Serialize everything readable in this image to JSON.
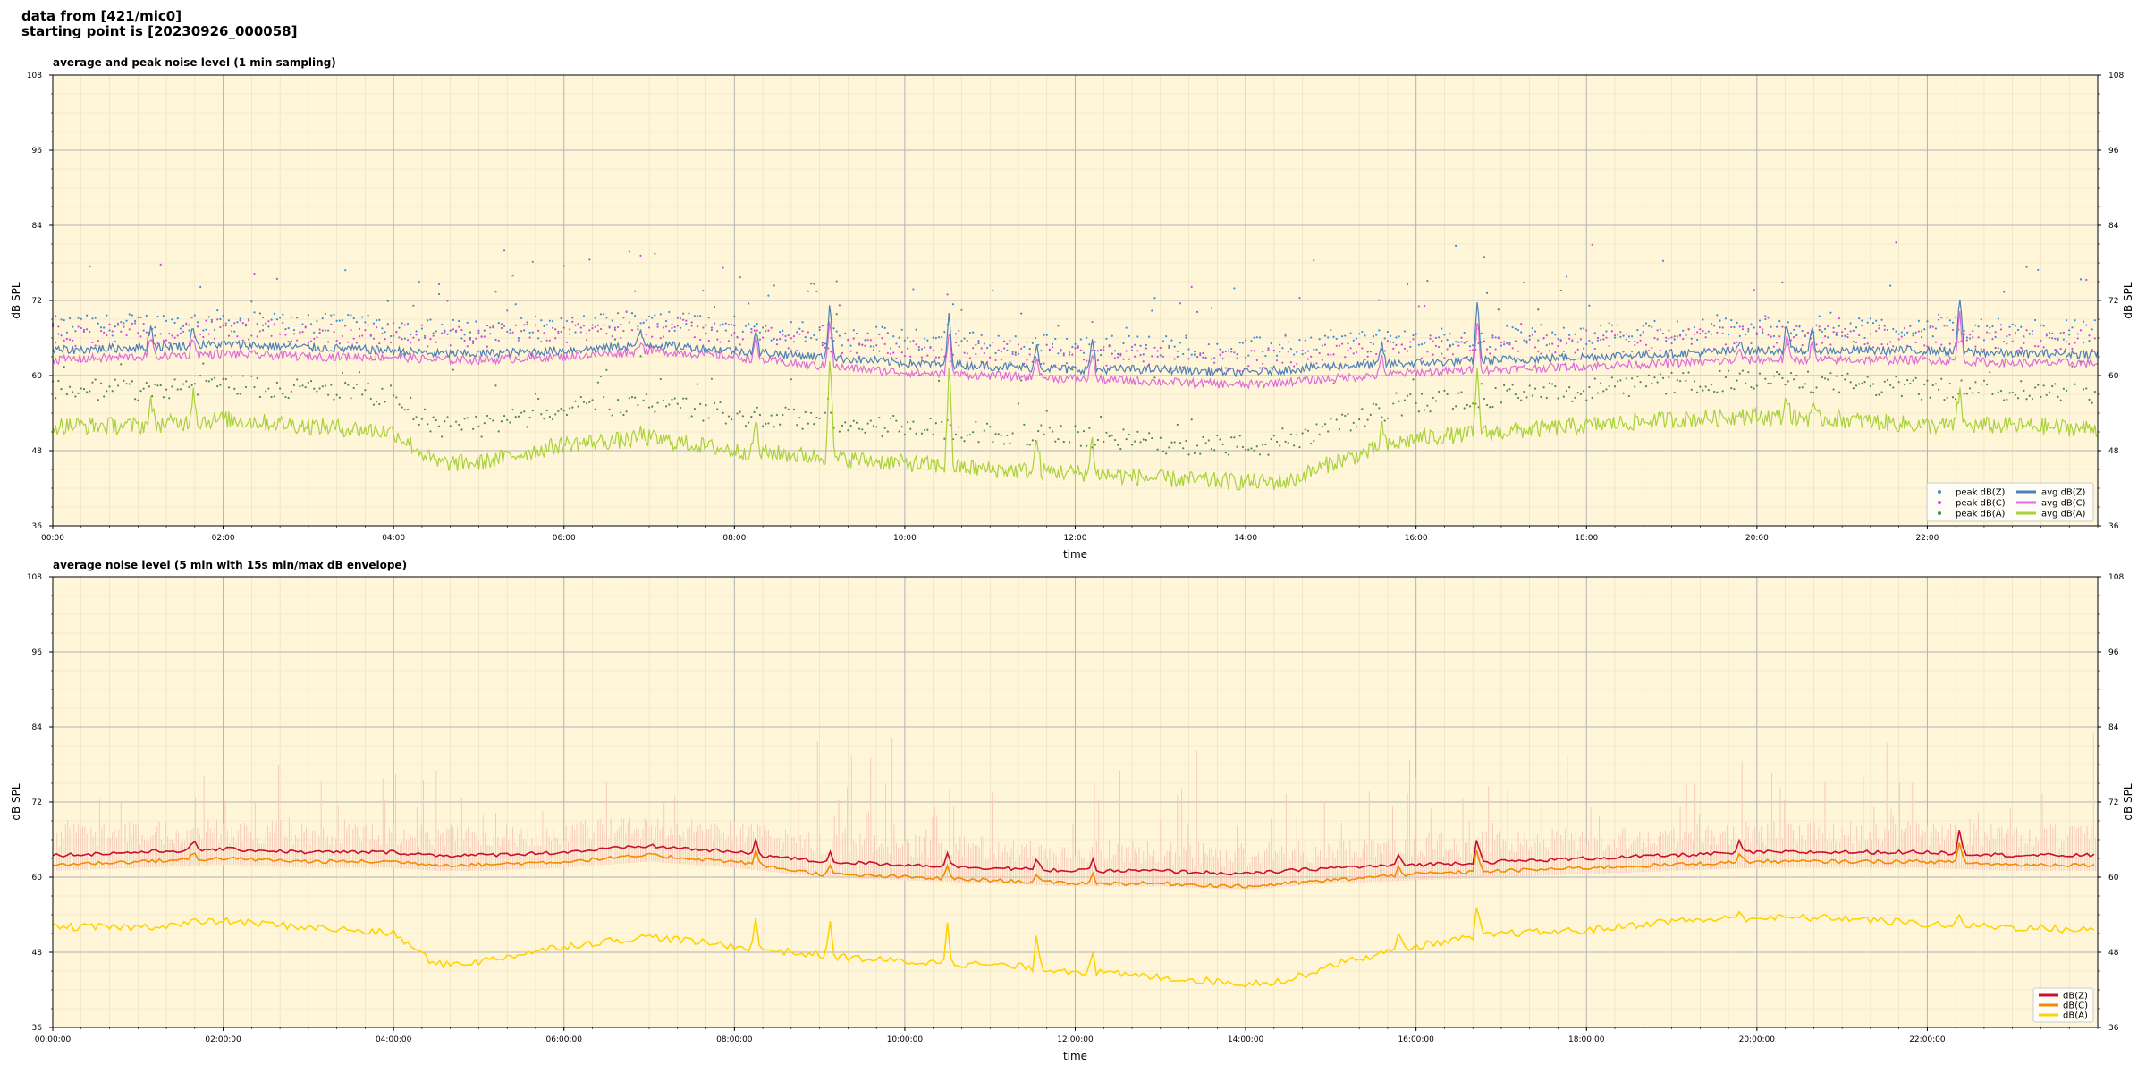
{
  "header": {
    "line1": "data from [421/mic0]",
    "line2": "starting point is [20230926_000058]"
  },
  "colors": {
    "bg": "#fff6da",
    "peakZ": "#3a8fd6",
    "peakC": "#d24ad2",
    "peakA": "#4e8a4e",
    "avgZ": "#4f7fb5",
    "avgC": "#e06ad8",
    "avgA": "#a9d13a",
    "dbZ": "#c8102e",
    "dbC": "#f28c00",
    "dbA": "#ffd200",
    "envelope": "#f7c9b8"
  },
  "chart_data": [
    {
      "type": "line",
      "title": "average and peak noise level (1 min sampling)",
      "xlabel": "time",
      "ylabel": "dB SPL",
      "ylim": [
        36,
        108
      ],
      "yticks": [
        "36",
        "48",
        "60",
        "72",
        "84",
        "96",
        "108"
      ],
      "xlim_hours": [
        0,
        24
      ],
      "xticks": [
        "00:00",
        "02:00",
        "04:00",
        "06:00",
        "08:00",
        "10:00",
        "12:00",
        "14:00",
        "16:00",
        "18:00",
        "20:00",
        "22:00"
      ],
      "grid": true,
      "legend_position": "bottom-right",
      "series": [
        {
          "name": "peak dB(Z)",
          "style": "points"
        },
        {
          "name": "peak dB(C)",
          "style": "points"
        },
        {
          "name": "peak dB(A)",
          "style": "points"
        },
        {
          "name": "avg dB(Z)",
          "style": "line"
        },
        {
          "name": "avg dB(C)",
          "style": "line"
        },
        {
          "name": "avg dB(A)",
          "style": "line"
        }
      ],
      "baseline_hours": [
        0,
        1,
        2,
        3,
        4,
        4.5,
        5,
        6,
        7,
        8,
        9,
        10,
        11,
        12,
        13,
        14,
        14.5,
        15,
        16,
        17,
        18,
        19,
        20,
        21,
        22,
        23,
        24
      ],
      "baseline_avg_Z": [
        64,
        64.5,
        65,
        64.5,
        64,
        63.5,
        63.5,
        64,
        65,
        64,
        63,
        62,
        61.5,
        61,
        61,
        60.5,
        61,
        61.5,
        62,
        62.5,
        63,
        63.5,
        64,
        64,
        64,
        63.5,
        63.5
      ],
      "baseline_avg_C": [
        62.5,
        63,
        63.5,
        63,
        63,
        62.5,
        62.5,
        63,
        64,
        63,
        61.5,
        60.5,
        60,
        59.5,
        59,
        58.5,
        59,
        59.5,
        60.5,
        61,
        61.5,
        62,
        62.5,
        62.5,
        62.5,
        62,
        62
      ],
      "baseline_avg_A": [
        52,
        52,
        53,
        52,
        51,
        46,
        46,
        49,
        50,
        48,
        47,
        46,
        45,
        44.5,
        43.5,
        43,
        43,
        46,
        50,
        51,
        52,
        53,
        53.5,
        53,
        52,
        52,
        51.5
      ],
      "spike_hours": [
        1.15,
        1.65,
        6.9,
        8.25,
        9.12,
        10.52,
        11.55,
        12.2,
        15.6,
        16.72,
        19.8,
        20.35,
        20.65,
        22.38
      ],
      "spike_avg_Z": [
        68,
        68,
        67,
        67,
        72,
        70,
        65,
        66,
        65,
        72,
        66,
        68,
        67,
        73
      ],
      "spike_avg_A": [
        56,
        58,
        51,
        53,
        64,
        62,
        50,
        50,
        52,
        61,
        55,
        57,
        55,
        58
      ]
    },
    {
      "type": "line",
      "title": "average noise level (5 min with 15s min/max dB envelope)",
      "xlabel": "time",
      "ylabel": "dB SPL",
      "ylim": [
        36,
        108
      ],
      "yticks": [
        "36",
        "48",
        "60",
        "72",
        "84",
        "96",
        "108"
      ],
      "xlim_hours": [
        0,
        24
      ],
      "xticks": [
        "00:00:00",
        "02:00:00",
        "04:00:00",
        "06:00:00",
        "08:00:00",
        "10:00:00",
        "12:00:00",
        "14:00:00",
        "16:00:00",
        "18:00:00",
        "20:00:00",
        "22:00:00"
      ],
      "grid": true,
      "legend_position": "bottom-right",
      "series": [
        {
          "name": "dB(Z)",
          "style": "line"
        },
        {
          "name": "dB(C)",
          "style": "line"
        },
        {
          "name": "dB(A)",
          "style": "line"
        }
      ],
      "baseline_hours": [
        0,
        1,
        2,
        3,
        4,
        4.5,
        5,
        6,
        7,
        8,
        9,
        10,
        11,
        12,
        13,
        14,
        14.5,
        15,
        16,
        17,
        18,
        19,
        20,
        21,
        22,
        23,
        24
      ],
      "baseline_Z": [
        63.5,
        64,
        64.5,
        64,
        64,
        63.5,
        63.5,
        64,
        65,
        64,
        62.5,
        62,
        61.5,
        61,
        61,
        60.5,
        61,
        61.5,
        62,
        62.5,
        63,
        63.5,
        64,
        64,
        64,
        63.5,
        63.5
      ],
      "baseline_C": [
        62,
        62.5,
        63,
        62.5,
        62.5,
        62,
        62,
        62.5,
        63.5,
        62.5,
        60.5,
        60,
        59.5,
        59,
        59,
        58.5,
        59,
        59.5,
        60.5,
        61,
        61.5,
        62,
        62.5,
        62.5,
        62.5,
        62,
        62
      ],
      "baseline_A": [
        52,
        52,
        53,
        52,
        51,
        46,
        46.5,
        49,
        50.5,
        49,
        47.5,
        46.5,
        46,
        45,
        44,
        43,
        43.5,
        46,
        49,
        51,
        51.5,
        53,
        53.5,
        53.5,
        52.5,
        52,
        51.5
      ],
      "spike_hours": [
        1.65,
        8.25,
        9.12,
        10.5,
        11.55,
        12.2,
        15.8,
        16.72,
        19.8,
        22.38
      ],
      "spike_Z": [
        66,
        66,
        64,
        64,
        63,
        63,
        64,
        67,
        66,
        68
      ],
      "spike_A": [
        53,
        53,
        53,
        53,
        51,
        49,
        52,
        56,
        55,
        54
      ]
    }
  ]
}
